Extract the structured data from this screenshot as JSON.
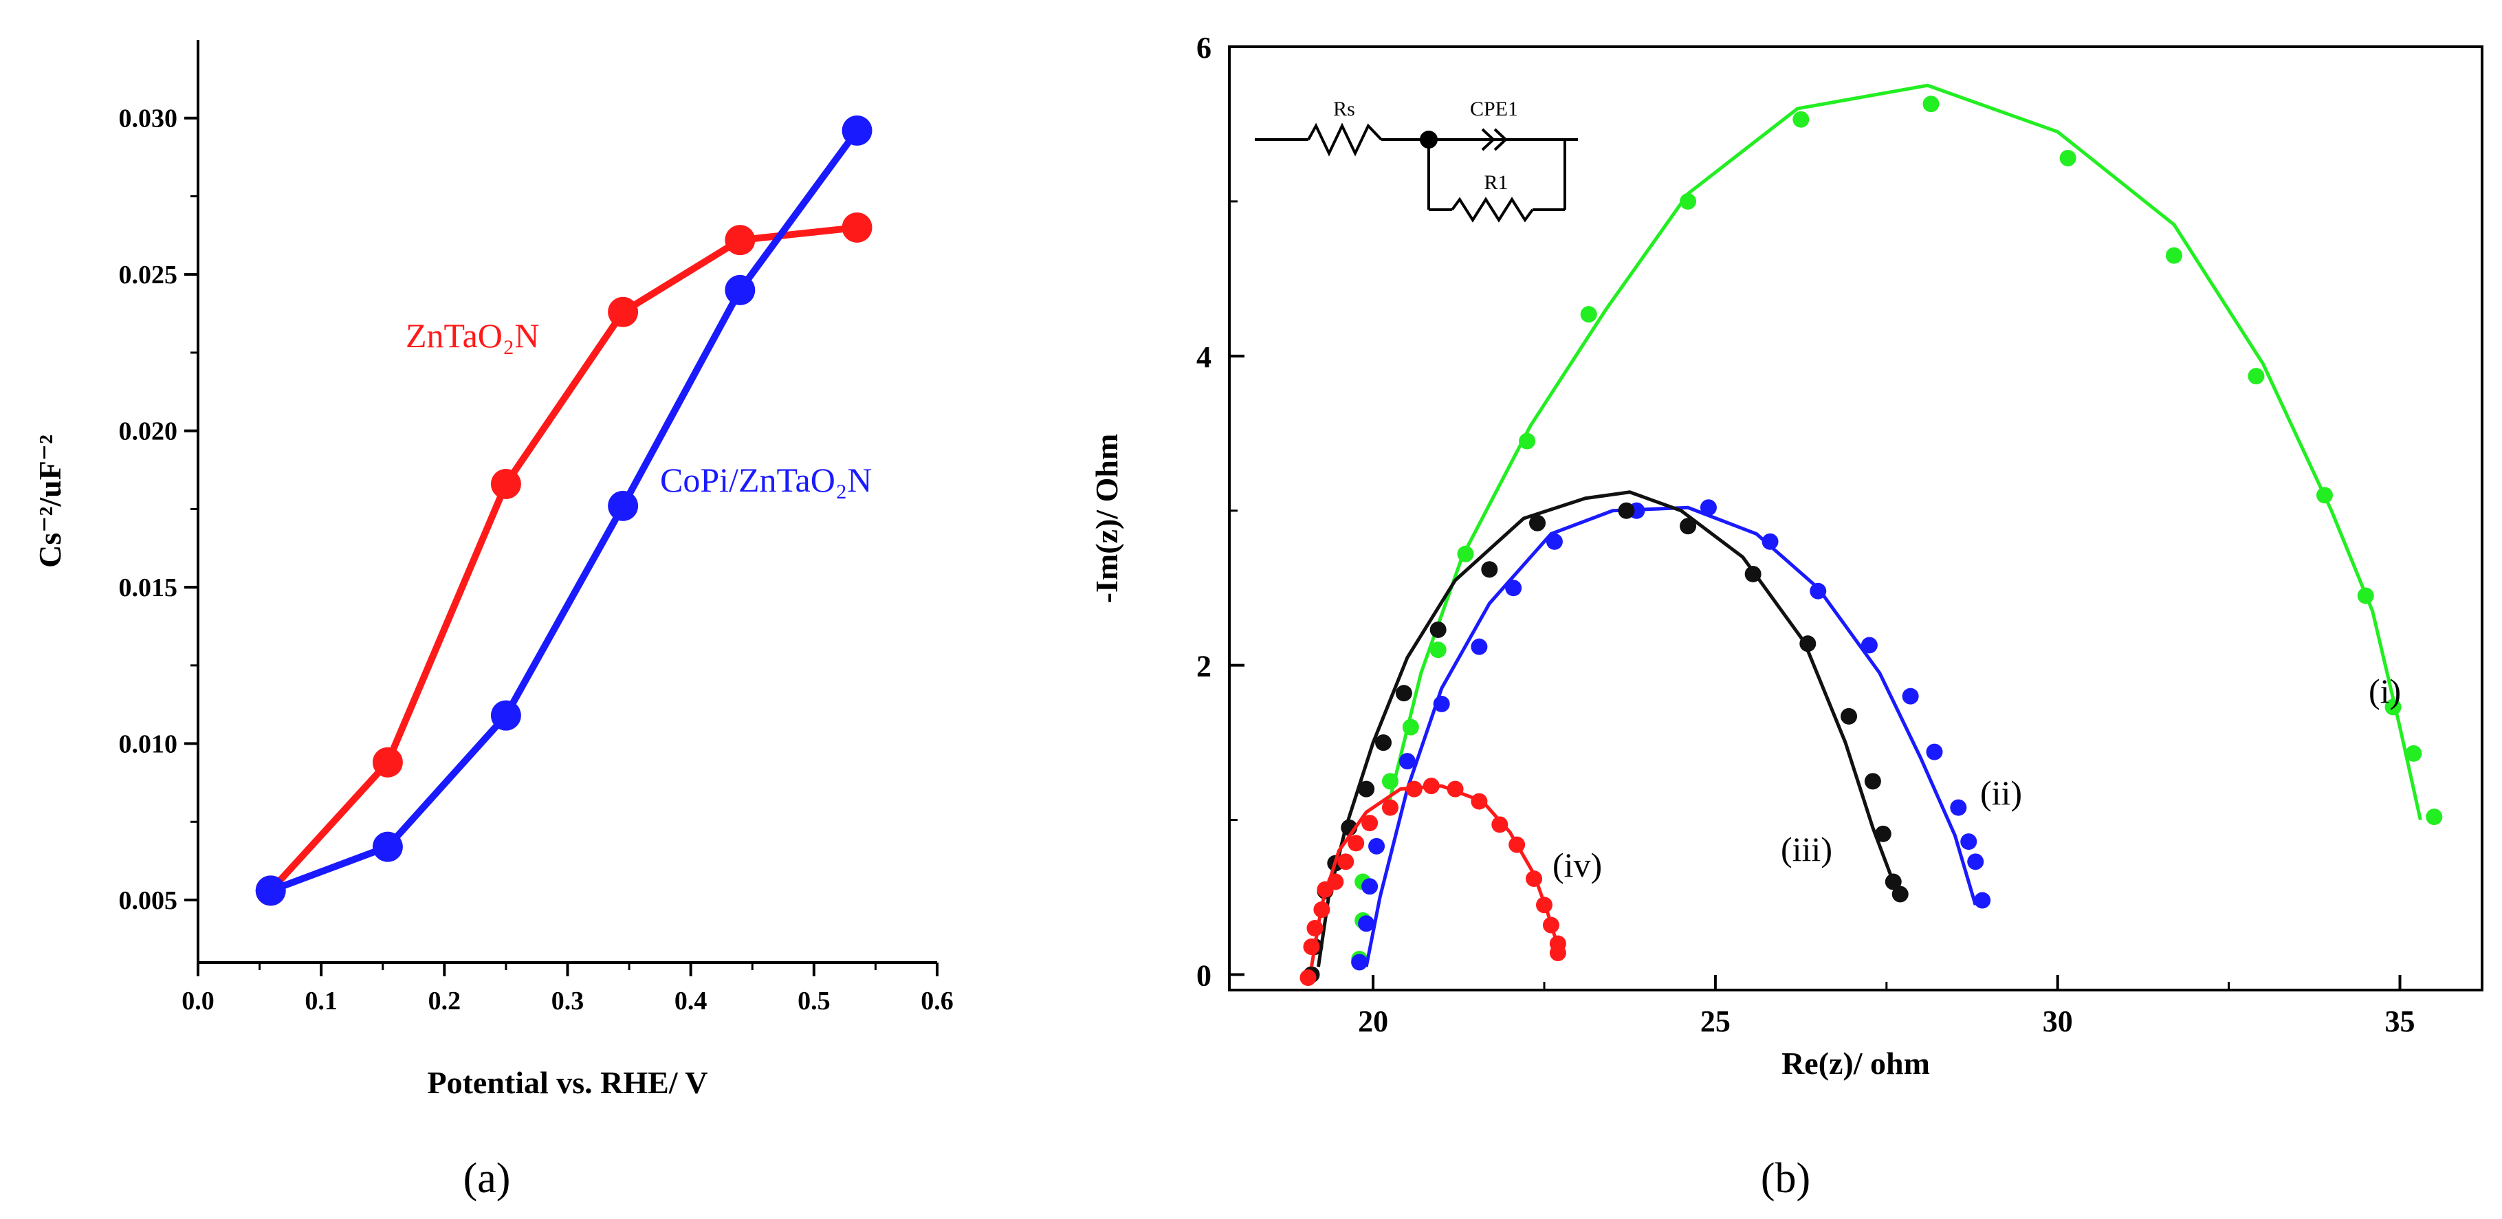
{
  "figure": {
    "panel_a_label": "(a)",
    "panel_b_label": "(b)"
  },
  "chart_data": [
    {
      "panel": "(a)",
      "type": "line",
      "xlabel": "Potential vs. RHE/ V",
      "ylabel": "Cs⁻²/uF⁻²",
      "xlim": [
        0.0,
        0.6
      ],
      "ylim": [
        0.003,
        0.0325
      ],
      "xticks": [
        0.0,
        0.1,
        0.2,
        0.3,
        0.4,
        0.5,
        0.6
      ],
      "xtick_labels": [
        "0.0",
        "0.1",
        "0.2",
        "0.3",
        "0.4",
        "0.5",
        "0.6"
      ],
      "yticks": [
        0.005,
        0.01,
        0.015,
        0.02,
        0.025,
        0.03
      ],
      "ytick_labels": [
        "0.005",
        "0.010",
        "0.015",
        "0.020",
        "0.025",
        "0.030"
      ],
      "series": [
        {
          "name": "ZnTaO₂N",
          "color": "#ff1a1a",
          "x": [
            0.059,
            0.154,
            0.25,
            0.345,
            0.44,
            0.535
          ],
          "y": [
            0.0053,
            0.0094,
            0.0183,
            0.0238,
            0.0261,
            0.0265
          ]
        },
        {
          "name": "CoPi/ZnTaO₂N",
          "color": "#1a1aff",
          "x": [
            0.059,
            0.154,
            0.25,
            0.345,
            0.44,
            0.535
          ],
          "y": [
            0.0053,
            0.0067,
            0.0109,
            0.0176,
            0.0245,
            0.0296
          ]
        }
      ]
    },
    {
      "panel": "(b)",
      "type": "scatter",
      "xlabel": "Re(z)/ ohm",
      "ylabel": "-Im(z)/ Ohm",
      "xlim": [
        17.9,
        36.2
      ],
      "ylim": [
        -0.1,
        6.0
      ],
      "xticks": [
        20,
        25,
        30,
        35
      ],
      "xtick_labels": [
        "20",
        "25",
        "30",
        "35"
      ],
      "yticks": [
        0,
        2,
        4,
        6
      ],
      "ytick_labels": [
        "0",
        "2",
        "4",
        "6"
      ],
      "circuit_labels": [
        "Rs",
        "CPE1",
        "R1"
      ],
      "series": [
        {
          "name": "(i)",
          "color": "#22ee22",
          "fit_x": [
            20.2,
            20.7,
            21.3,
            22.3,
            23.4,
            24.6,
            26.2,
            28.1,
            30.0,
            31.7,
            33.0,
            34.0,
            34.6,
            35.0,
            35.3
          ],
          "fit_y": [
            1.05,
            1.95,
            2.7,
            3.55,
            4.3,
            5.05,
            5.6,
            5.75,
            5.45,
            4.85,
            3.95,
            3.0,
            2.35,
            1.6,
            1.0
          ],
          "x": [
            19.8,
            19.85,
            19.85,
            20.25,
            20.55,
            20.95,
            21.35,
            22.25,
            23.15,
            24.6,
            26.25,
            28.15,
            30.15,
            31.7,
            32.9,
            33.9,
            34.5,
            34.9,
            35.2,
            35.5
          ],
          "y": [
            0.1,
            0.35,
            0.6,
            1.25,
            1.6,
            2.1,
            2.72,
            3.45,
            4.27,
            5.0,
            5.53,
            5.63,
            5.28,
            4.65,
            3.87,
            3.1,
            2.45,
            1.73,
            1.43,
            1.02
          ]
        },
        {
          "name": "(ii)",
          "color": "#1a1aff",
          "fit_x": [
            19.9,
            20.1,
            20.5,
            21.0,
            21.7,
            22.6,
            23.5,
            24.6,
            25.6,
            26.5,
            27.4,
            28.0,
            28.5,
            28.8
          ],
          "fit_y": [
            0.05,
            0.5,
            1.2,
            1.85,
            2.4,
            2.85,
            3.0,
            3.02,
            2.85,
            2.5,
            1.95,
            1.4,
            0.9,
            0.45
          ],
          "x": [
            19.8,
            19.9,
            19.95,
            20.05,
            20.5,
            21.0,
            21.55,
            22.05,
            22.65,
            23.85,
            24.9,
            25.8,
            26.5,
            27.25,
            27.85,
            28.2,
            28.55,
            28.7,
            28.8,
            28.9
          ],
          "y": [
            0.08,
            0.33,
            0.57,
            0.83,
            1.38,
            1.75,
            2.12,
            2.5,
            2.8,
            3.0,
            3.02,
            2.8,
            2.48,
            2.13,
            1.8,
            1.44,
            1.08,
            0.86,
            0.73,
            0.48
          ]
        },
        {
          "name": "(iii)",
          "color": "#111111",
          "fit_x": [
            19.2,
            19.35,
            19.6,
            20.0,
            20.5,
            21.2,
            22.2,
            23.1,
            23.75,
            24.5,
            25.4,
            26.3,
            26.9,
            27.3,
            27.7
          ],
          "fit_y": [
            0.05,
            0.5,
            0.95,
            1.5,
            2.05,
            2.55,
            2.95,
            3.08,
            3.12,
            3.0,
            2.7,
            2.15,
            1.5,
            0.95,
            0.48
          ],
          "x": [
            19.1,
            19.15,
            19.3,
            19.45,
            19.65,
            19.9,
            20.15,
            20.45,
            20.95,
            21.7,
            22.4,
            23.7,
            24.6,
            25.55,
            26.35,
            26.95,
            27.3,
            27.45,
            27.6,
            27.7
          ],
          "y": [
            0.0,
            0.18,
            0.54,
            0.72,
            0.95,
            1.2,
            1.5,
            1.82,
            2.23,
            2.62,
            2.92,
            3.0,
            2.9,
            2.59,
            2.14,
            1.67,
            1.25,
            0.91,
            0.6,
            0.52
          ]
        },
        {
          "name": "(iv)",
          "color": "#ff1a1a",
          "fit_x": [
            19.1,
            19.25,
            19.5,
            19.9,
            20.4,
            21.0,
            21.6,
            22.0,
            22.35,
            22.55,
            22.7
          ],
          "fit_y": [
            0.05,
            0.45,
            0.8,
            1.05,
            1.2,
            1.22,
            1.12,
            0.92,
            0.65,
            0.4,
            0.18
          ],
          "x": [
            19.05,
            19.1,
            19.15,
            19.25,
            19.3,
            19.45,
            19.6,
            19.75,
            19.95,
            20.25,
            20.6,
            20.85,
            21.2,
            21.55,
            21.85,
            22.1,
            22.35,
            22.5,
            22.6,
            22.7,
            22.7
          ],
          "y": [
            -0.02,
            0.18,
            0.3,
            0.42,
            0.55,
            0.6,
            0.73,
            0.85,
            0.98,
            1.08,
            1.2,
            1.22,
            1.2,
            1.12,
            0.97,
            0.84,
            0.62,
            0.45,
            0.32,
            0.2,
            0.14
          ]
        }
      ]
    }
  ]
}
